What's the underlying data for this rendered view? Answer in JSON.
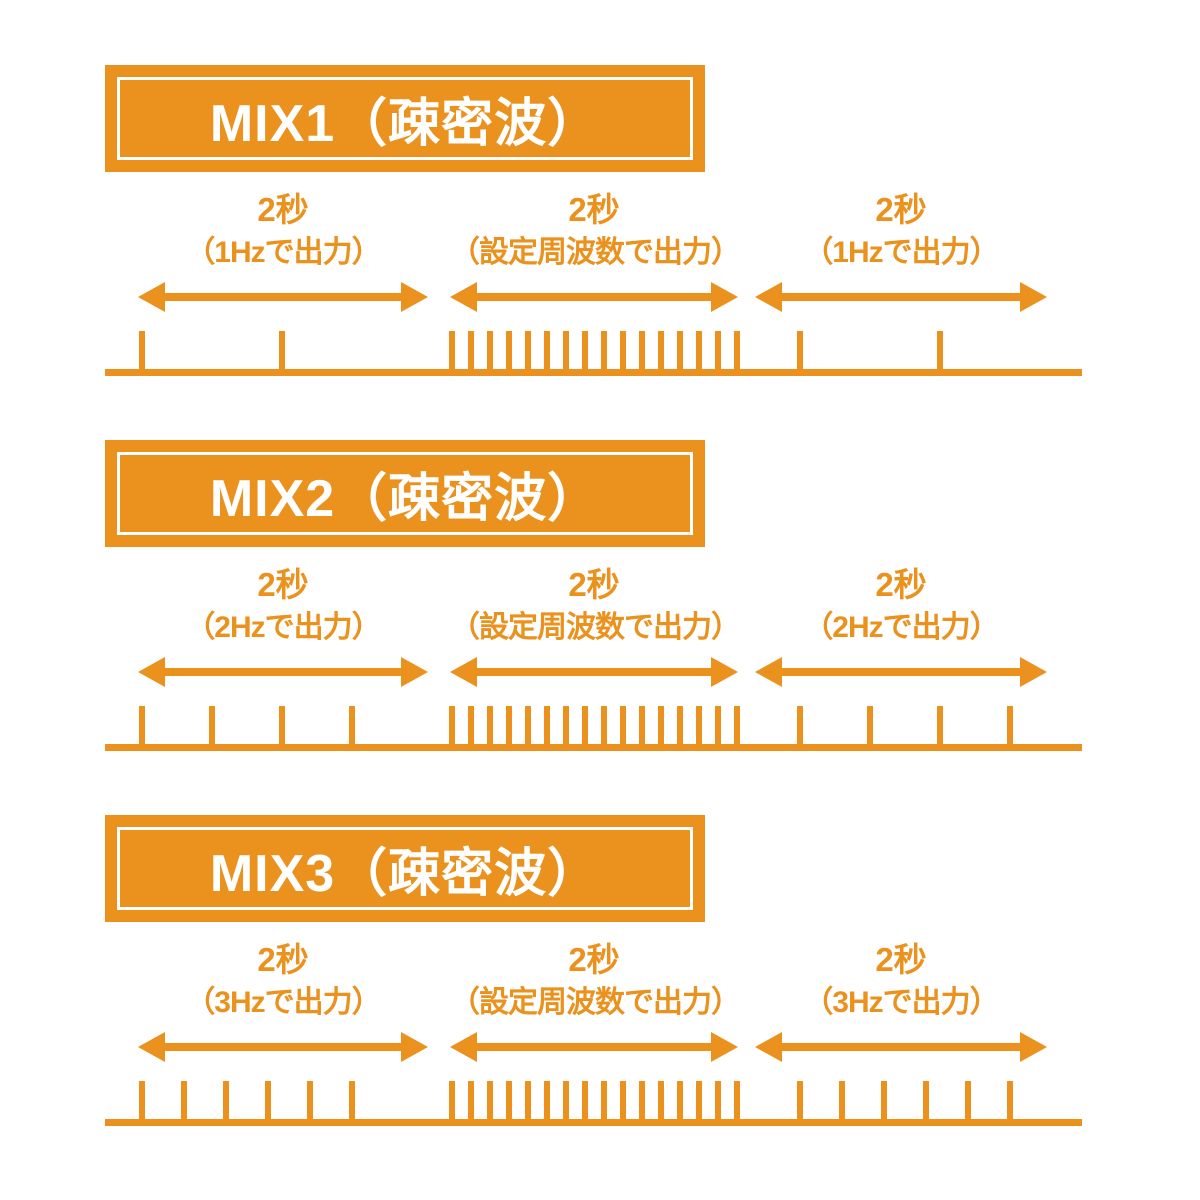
{
  "page": {
    "background": "#ffffff",
    "accent_color": "#EA921D",
    "banner_text_color": "#ffffff"
  },
  "blocks": [
    {
      "title": "MIX1（疎密波）",
      "segments": [
        {
          "duration_label": "2秒",
          "output_label": "（1Hzで出力）",
          "pulse_count": 2
        },
        {
          "duration_label": "2秒",
          "output_label": "（設定周波数で出力）",
          "pulse_count": 16
        },
        {
          "duration_label": "2秒",
          "output_label": "（1Hzで出力）",
          "pulse_count": 2
        }
      ],
      "timeline": {
        "tick_positions": [
          142,
          282,
          452,
          471,
          490,
          509,
          528,
          547,
          566,
          585,
          604,
          623,
          642,
          661,
          680,
          699,
          718,
          737,
          800,
          940
        ]
      }
    },
    {
      "title": "MIX2（疎密波）",
      "segments": [
        {
          "duration_label": "2秒",
          "output_label": "（2Hzで出力）",
          "pulse_count": 4
        },
        {
          "duration_label": "2秒",
          "output_label": "（設定周波数で出力）",
          "pulse_count": 16
        },
        {
          "duration_label": "2秒",
          "output_label": "（2Hzで出力）",
          "pulse_count": 4
        }
      ],
      "timeline": {
        "tick_positions": [
          142,
          212,
          282,
          352,
          452,
          471,
          490,
          509,
          528,
          547,
          566,
          585,
          604,
          623,
          642,
          661,
          680,
          699,
          718,
          737,
          800,
          870,
          940,
          1010
        ]
      }
    },
    {
      "title": "MIX3（疎密波）",
      "segments": [
        {
          "duration_label": "2秒",
          "output_label": "（3Hzで出力）",
          "pulse_count": 6
        },
        {
          "duration_label": "2秒",
          "output_label": "（設定周波数で出力）",
          "pulse_count": 16
        },
        {
          "duration_label": "2秒",
          "output_label": "（3Hzで出力）",
          "pulse_count": 6
        }
      ],
      "timeline": {
        "tick_positions": [
          142,
          184,
          226,
          268,
          310,
          352,
          452,
          471,
          490,
          509,
          528,
          547,
          566,
          585,
          604,
          623,
          642,
          661,
          680,
          699,
          718,
          737,
          800,
          842,
          884,
          926,
          968,
          1010
        ]
      }
    }
  ]
}
